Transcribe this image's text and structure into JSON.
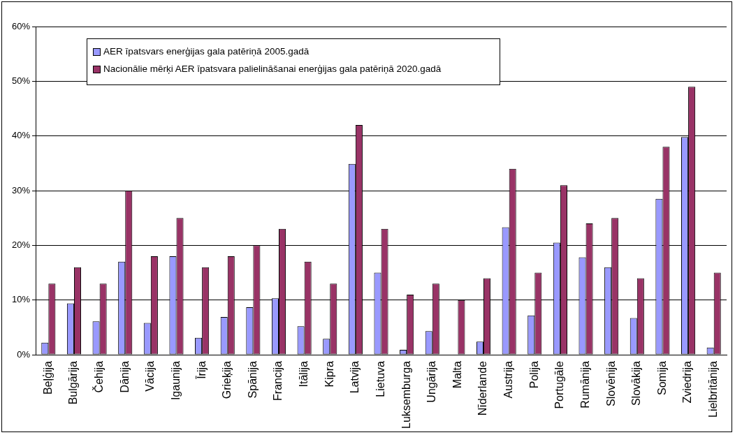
{
  "chart_data": {
    "type": "bar",
    "categories": [
      "Beļģija",
      "Bulgārija",
      "Čehija",
      "Dānija",
      "Vācija",
      "Igaunija",
      "Īrija",
      "Grieķija",
      "Spānija",
      "Francija",
      "Itālija",
      "Kipra",
      "Latvija",
      "Lietuva",
      "Luksemburga",
      "Ungārija",
      "Malta",
      "Nīderlande",
      "Austrija",
      "Polija",
      "Portugāle",
      "Rumānija",
      "Slovēnija",
      "Slovākija",
      "Somija",
      "Zviedrija",
      "Lielbritānija"
    ],
    "series": [
      {
        "name": "AER īpatsvars enerģijas gala patēriņā 2005.gadā",
        "color": "#9999ff",
        "values": [
          2.2,
          9.4,
          6.1,
          17.0,
          5.8,
          18.0,
          3.1,
          6.9,
          8.7,
          10.3,
          5.2,
          2.9,
          34.9,
          15.0,
          0.9,
          4.3,
          0,
          2.4,
          23.3,
          7.2,
          20.5,
          17.8,
          16.0,
          6.7,
          28.5,
          39.8,
          1.3
        ]
      },
      {
        "name": "Nacionālie mērķi AER īpatsvara palielināšanai enerģijas gala patēriņā 2020.gadā",
        "color": "#993366",
        "values": [
          13,
          16,
          13,
          30,
          18,
          25,
          16,
          18,
          20,
          23,
          17,
          13,
          42,
          23,
          11,
          13,
          10,
          14,
          34,
          15,
          31,
          24,
          25,
          14,
          38,
          49,
          15
        ]
      }
    ],
    "ylim": [
      0,
      60
    ],
    "yticks": [
      {
        "value": 0,
        "label": "0%"
      },
      {
        "value": 10,
        "label": "10%"
      },
      {
        "value": 20,
        "label": "20%"
      },
      {
        "value": 30,
        "label": "30%"
      },
      {
        "value": 40,
        "label": "40%"
      },
      {
        "value": 50,
        "label": "50%"
      },
      {
        "value": 60,
        "label": "60%"
      }
    ],
    "grid": "y",
    "legend": "top left"
  }
}
